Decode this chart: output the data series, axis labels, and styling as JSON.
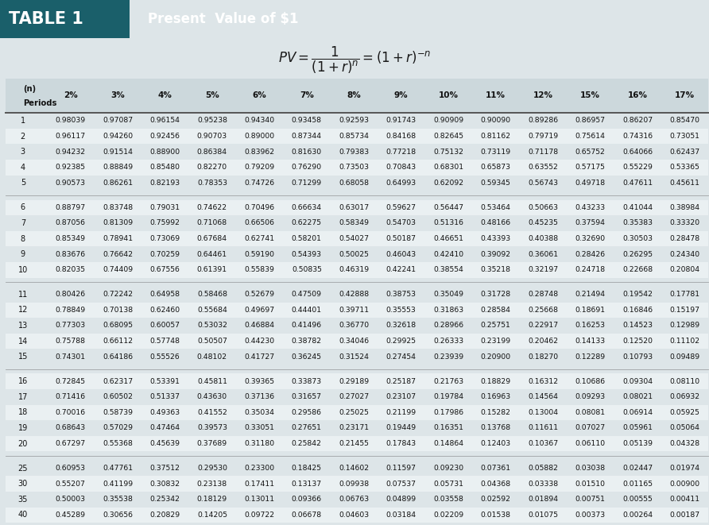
{
  "title_left": "TABLE 1",
  "title_right": "Present  Value of $1",
  "header_bg_left": "#1a5f6a",
  "header_bg_right": "#6a9aa0",
  "table_bg": "#dde5e8",
  "col_headers": [
    "Periods",
    "2%",
    "3%",
    "4%",
    "5%",
    "6%",
    "7%",
    "8%",
    "9%",
    "10%",
    "11%",
    "12%",
    "15%",
    "16%",
    "17%"
  ],
  "periods": [
    1,
    2,
    3,
    4,
    5,
    6,
    7,
    8,
    9,
    10,
    11,
    12,
    13,
    14,
    15,
    16,
    17,
    18,
    19,
    20,
    25,
    30,
    35,
    40
  ],
  "data": [
    [
      0.98039,
      0.97087,
      0.96154,
      0.95238,
      0.9434,
      0.93458,
      0.92593,
      0.91743,
      0.90909,
      0.9009,
      0.89286,
      0.86957,
      0.86207,
      0.8547
    ],
    [
      0.96117,
      0.9426,
      0.92456,
      0.90703,
      0.89,
      0.87344,
      0.85734,
      0.84168,
      0.82645,
      0.81162,
      0.79719,
      0.75614,
      0.74316,
      0.73051
    ],
    [
      0.94232,
      0.91514,
      0.889,
      0.86384,
      0.83962,
      0.8163,
      0.79383,
      0.77218,
      0.75132,
      0.73119,
      0.71178,
      0.65752,
      0.64066,
      0.62437
    ],
    [
      0.92385,
      0.88849,
      0.8548,
      0.8227,
      0.79209,
      0.7629,
      0.73503,
      0.70843,
      0.68301,
      0.65873,
      0.63552,
      0.57175,
      0.55229,
      0.53365
    ],
    [
      0.90573,
      0.86261,
      0.82193,
      0.78353,
      0.74726,
      0.71299,
      0.68058,
      0.64993,
      0.62092,
      0.59345,
      0.56743,
      0.49718,
      0.47611,
      0.45611
    ],
    [
      0.88797,
      0.83748,
      0.79031,
      0.74622,
      0.70496,
      0.66634,
      0.63017,
      0.59627,
      0.56447,
      0.53464,
      0.50663,
      0.43233,
      0.41044,
      0.38984
    ],
    [
      0.87056,
      0.81309,
      0.75992,
      0.71068,
      0.66506,
      0.62275,
      0.58349,
      0.54703,
      0.51316,
      0.48166,
      0.45235,
      0.37594,
      0.35383,
      0.3332
    ],
    [
      0.85349,
      0.78941,
      0.73069,
      0.67684,
      0.62741,
      0.58201,
      0.54027,
      0.50187,
      0.46651,
      0.43393,
      0.40388,
      0.3269,
      0.30503,
      0.28478
    ],
    [
      0.83676,
      0.76642,
      0.70259,
      0.64461,
      0.5919,
      0.54393,
      0.50025,
      0.46043,
      0.4241,
      0.39092,
      0.36061,
      0.28426,
      0.26295,
      0.2434
    ],
    [
      0.82035,
      0.74409,
      0.67556,
      0.61391,
      0.55839,
      0.50835,
      0.46319,
      0.42241,
      0.38554,
      0.35218,
      0.32197,
      0.24718,
      0.22668,
      0.20804
    ],
    [
      0.80426,
      0.72242,
      0.64958,
      0.58468,
      0.52679,
      0.47509,
      0.42888,
      0.38753,
      0.35049,
      0.31728,
      0.28748,
      0.21494,
      0.19542,
      0.17781
    ],
    [
      0.78849,
      0.70138,
      0.6246,
      0.55684,
      0.49697,
      0.44401,
      0.39711,
      0.35553,
      0.31863,
      0.28584,
      0.25668,
      0.18691,
      0.16846,
      0.15197
    ],
    [
      0.77303,
      0.68095,
      0.60057,
      0.53032,
      0.46884,
      0.41496,
      0.3677,
      0.32618,
      0.28966,
      0.25751,
      0.22917,
      0.16253,
      0.14523,
      0.12989
    ],
    [
      0.75788,
      0.66112,
      0.57748,
      0.50507,
      0.4423,
      0.38782,
      0.34046,
      0.29925,
      0.26333,
      0.23199,
      0.20462,
      0.14133,
      0.1252,
      0.11102
    ],
    [
      0.74301,
      0.64186,
      0.55526,
      0.48102,
      0.41727,
      0.36245,
      0.31524,
      0.27454,
      0.23939,
      0.209,
      0.1827,
      0.12289,
      0.10793,
      0.09489
    ],
    [
      0.72845,
      0.62317,
      0.53391,
      0.45811,
      0.39365,
      0.33873,
      0.29189,
      0.25187,
      0.21763,
      0.18829,
      0.16312,
      0.10686,
      0.09304,
      0.0811
    ],
    [
      0.71416,
      0.60502,
      0.51337,
      0.4363,
      0.37136,
      0.31657,
      0.27027,
      0.23107,
      0.19784,
      0.16963,
      0.14564,
      0.09293,
      0.08021,
      0.06932
    ],
    [
      0.70016,
      0.58739,
      0.49363,
      0.41552,
      0.35034,
      0.29586,
      0.25025,
      0.21199,
      0.17986,
      0.15282,
      0.13004,
      0.08081,
      0.06914,
      0.05925
    ],
    [
      0.68643,
      0.57029,
      0.47464,
      0.39573,
      0.33051,
      0.27651,
      0.23171,
      0.19449,
      0.16351,
      0.13768,
      0.11611,
      0.07027,
      0.05961,
      0.05064
    ],
    [
      0.67297,
      0.55368,
      0.45639,
      0.37689,
      0.3118,
      0.25842,
      0.21455,
      0.17843,
      0.14864,
      0.12403,
      0.10367,
      0.0611,
      0.05139,
      0.04328
    ],
    [
      0.60953,
      0.47761,
      0.37512,
      0.2953,
      0.233,
      0.18425,
      0.14602,
      0.11597,
      0.0923,
      0.07361,
      0.05882,
      0.03038,
      0.02447,
      0.01974
    ],
    [
      0.55207,
      0.41199,
      0.30832,
      0.23138,
      0.17411,
      0.13137,
      0.09938,
      0.07537,
      0.05731,
      0.04368,
      0.03338,
      0.0151,
      0.01165,
      0.009
    ],
    [
      0.50003,
      0.35538,
      0.25342,
      0.18129,
      0.13011,
      0.09366,
      0.06763,
      0.04899,
      0.03558,
      0.02592,
      0.01894,
      0.00751,
      0.00555,
      0.00411
    ],
    [
      0.45289,
      0.30656,
      0.20829,
      0.14205,
      0.09722,
      0.06678,
      0.04603,
      0.03184,
      0.02209,
      0.01538,
      0.01075,
      0.00373,
      0.00264,
      0.00187
    ]
  ],
  "groups": [
    [
      0,
      1,
      2,
      3,
      4
    ],
    [
      5,
      6,
      7,
      8,
      9
    ],
    [
      10,
      11,
      12,
      13,
      14
    ],
    [
      15,
      16,
      17,
      18,
      19
    ],
    [
      20,
      21,
      22,
      23
    ]
  ],
  "header_row_color": "#ccd8dc",
  "alt_row_color": "#dde5e8",
  "white_row_color": "#eaf0f2",
  "text_color": "#111111",
  "line_color": "#555555"
}
